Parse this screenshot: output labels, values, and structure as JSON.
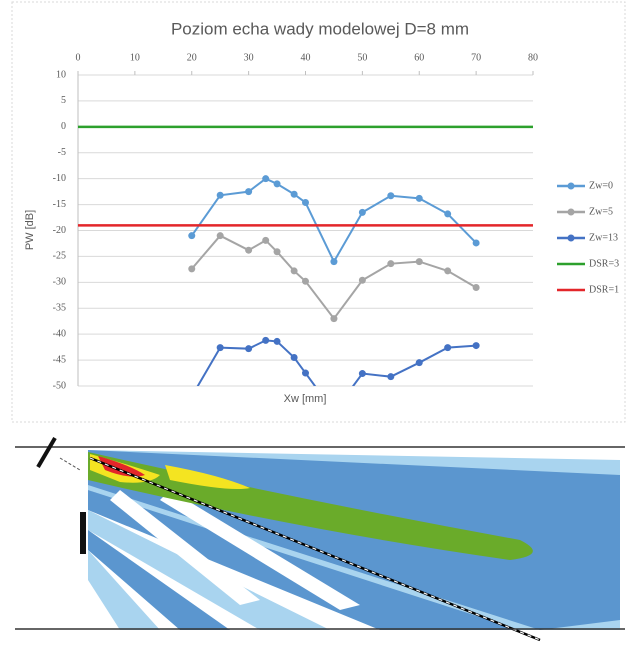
{
  "chart_data": {
    "type": "line",
    "title": "Poziom echa wady modelowej D=8 mm",
    "x_label": "Xw [mm]",
    "y_label": "PW [dB]",
    "xlim": [
      0,
      80
    ],
    "xticks": [
      0,
      10,
      20,
      30,
      40,
      50,
      60,
      70,
      80
    ],
    "ylim": [
      -50,
      10
    ],
    "yticks": [
      10,
      5,
      0,
      -5,
      -10,
      -15,
      -20,
      -25,
      -30,
      -35,
      -40,
      -45,
      -50
    ],
    "grid": true,
    "legend": "right",
    "series": [
      {
        "name": "Zw=0",
        "color": "#5b9bd5",
        "marker": "circle",
        "x": [
          20,
          25,
          30,
          33,
          35,
          38,
          40,
          45,
          50,
          55,
          60,
          65,
          70
        ],
        "values": [
          -21,
          -13.2,
          -12.5,
          -10,
          -11,
          -13,
          -14.6,
          -26,
          -16.5,
          -13.3,
          -13.8,
          -16.8,
          -22.4
        ]
      },
      {
        "name": "Zw=5",
        "color": "#a5a5a5",
        "marker": "circle",
        "x": [
          20,
          25,
          30,
          33,
          35,
          38,
          40,
          45,
          50,
          55,
          60,
          65,
          70
        ],
        "values": [
          -27.4,
          -21,
          -23.8,
          -21.9,
          -24.1,
          -27.8,
          -29.8,
          -37,
          -29.6,
          -26.4,
          -26,
          -27.8,
          -31
        ]
      },
      {
        "name": "Zw=13",
        "color": "#4472c4",
        "marker": "circle",
        "x": [
          20,
          25,
          30,
          33,
          35,
          38,
          40,
          45,
          50,
          55,
          60,
          65,
          70
        ],
        "values": [
          -52,
          -42.6,
          -42.8,
          -41.2,
          -41.4,
          -44.5,
          -47.5,
          -55,
          -47.6,
          -48.2,
          -45.5,
          -42.6,
          -42.2
        ]
      },
      {
        "name": "DSR=3",
        "color": "#2ca02c",
        "marker": "none",
        "x": [
          0,
          80
        ],
        "values": [
          0,
          0
        ]
      },
      {
        "name": "DSR=1",
        "color": "#e3262a",
        "marker": "none",
        "x": [
          0,
          80
        ],
        "values": [
          -19,
          -19
        ]
      }
    ]
  }
}
